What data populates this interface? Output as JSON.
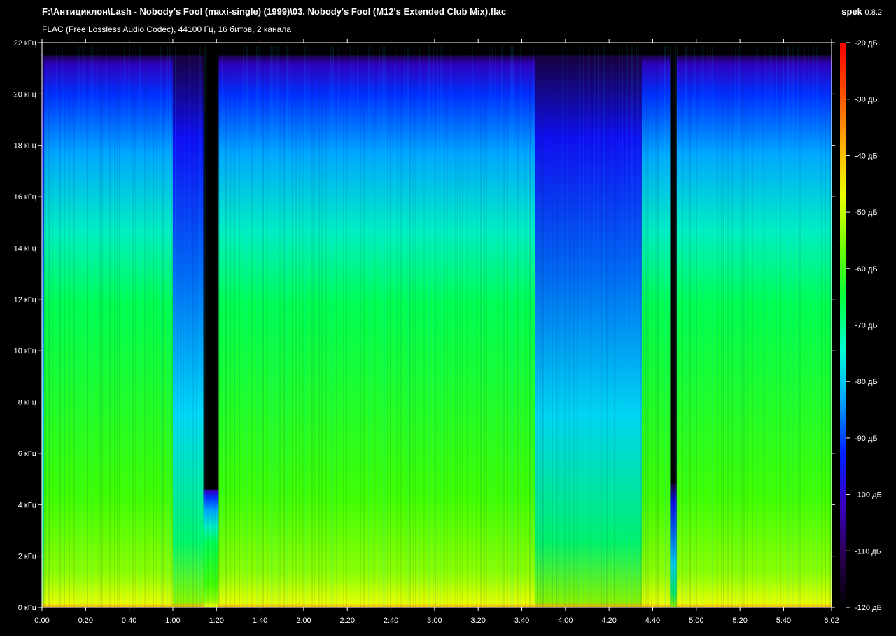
{
  "header": {
    "title": "F:\\Антициклон\\Lash - Nobody's Fool (maxi-single) (1999)\\03. Nobody's Fool (M12's Extended Club Mix).flac",
    "subtitle": "FLAC (Free Lossless Audio Codec), 44100 Гц, 16 битов, 2 канала",
    "app_name": "spek",
    "app_version": "0.8.2"
  },
  "chart_data": {
    "type": "heatmap",
    "title": "",
    "xlabel": "",
    "ylabel": "",
    "x_range_seconds": [
      0,
      362
    ],
    "y_range_khz": [
      0,
      22
    ],
    "x_ticks": [
      {
        "value": 0,
        "label": "0:00"
      },
      {
        "value": 20,
        "label": "0:20"
      },
      {
        "value": 40,
        "label": "0:40"
      },
      {
        "value": 60,
        "label": "1:00"
      },
      {
        "value": 80,
        "label": "1:20"
      },
      {
        "value": 100,
        "label": "1:40"
      },
      {
        "value": 120,
        "label": "2:00"
      },
      {
        "value": 140,
        "label": "2:20"
      },
      {
        "value": 160,
        "label": "2:40"
      },
      {
        "value": 180,
        "label": "3:00"
      },
      {
        "value": 200,
        "label": "3:20"
      },
      {
        "value": 220,
        "label": "3:40"
      },
      {
        "value": 240,
        "label": "4:00"
      },
      {
        "value": 260,
        "label": "4:20"
      },
      {
        "value": 280,
        "label": "4:40"
      },
      {
        "value": 300,
        "label": "5:00"
      },
      {
        "value": 320,
        "label": "5:20"
      },
      {
        "value": 340,
        "label": "5:40"
      },
      {
        "value": 362,
        "label": "6:02"
      }
    ],
    "y_ticks": [
      {
        "value": 0,
        "label": "0 кГц"
      },
      {
        "value": 2,
        "label": "2 кГц"
      },
      {
        "value": 4,
        "label": "4 кГц"
      },
      {
        "value": 6,
        "label": "6 кГц"
      },
      {
        "value": 8,
        "label": "8 кГц"
      },
      {
        "value": 10,
        "label": "10 кГц"
      },
      {
        "value": 12,
        "label": "12 кГц"
      },
      {
        "value": 14,
        "label": "14 кГц"
      },
      {
        "value": 16,
        "label": "16 кГц"
      },
      {
        "value": 18,
        "label": "18 кГц"
      },
      {
        "value": 20,
        "label": "20 кГц"
      },
      {
        "value": 22,
        "label": "22 кГц"
      }
    ],
    "colorbar": {
      "range_db": [
        -120,
        -20
      ],
      "ticks": [
        {
          "value": -20,
          "label": "-20 дБ"
        },
        {
          "value": -30,
          "label": "-30 дБ"
        },
        {
          "value": -40,
          "label": "-40 дБ"
        },
        {
          "value": -50,
          "label": "-50 дБ"
        },
        {
          "value": -60,
          "label": "-60 дБ"
        },
        {
          "value": -70,
          "label": "-70 дБ"
        },
        {
          "value": -80,
          "label": "-80 дБ"
        },
        {
          "value": -90,
          "label": "-90 дБ"
        },
        {
          "value": -100,
          "label": "-100 дБ"
        },
        {
          "value": -110,
          "label": "-110 дБ"
        },
        {
          "value": -120,
          "label": "-120 дБ"
        }
      ],
      "colors": [
        "#000000",
        "#2a0050",
        "#3a00c0",
        "#0020ff",
        "#00a0ff",
        "#00ffd8",
        "#00ff40",
        "#6fff00",
        "#e8ff00",
        "#ffb000",
        "#ff5000",
        "#ff0000"
      ]
    },
    "spectral_regions": [
      {
        "t_start": 0,
        "t_end": 1,
        "max_khz": 21.5,
        "level_db": -80
      },
      {
        "t_start": 1,
        "t_end": 60,
        "max_khz": 21.5,
        "level_db": -75
      },
      {
        "t_start": 60,
        "t_end": 74,
        "max_khz": 21.5,
        "level_db": -78
      },
      {
        "t_start": 74,
        "t_end": 81,
        "max_khz": 4.6,
        "level_db": -70
      },
      {
        "t_start": 81,
        "t_end": 226,
        "max_khz": 21.5,
        "level_db": -62
      },
      {
        "t_start": 226,
        "t_end": 275,
        "max_khz": 21.5,
        "level_db": -80
      },
      {
        "t_start": 275,
        "t_end": 288,
        "max_khz": 21.5,
        "level_db": -70
      },
      {
        "t_start": 288,
        "t_end": 291,
        "max_khz": 4.8,
        "level_db": -85
      },
      {
        "t_start": 291,
        "t_end": 362,
        "max_khz": 21.5,
        "level_db": -68
      }
    ]
  }
}
